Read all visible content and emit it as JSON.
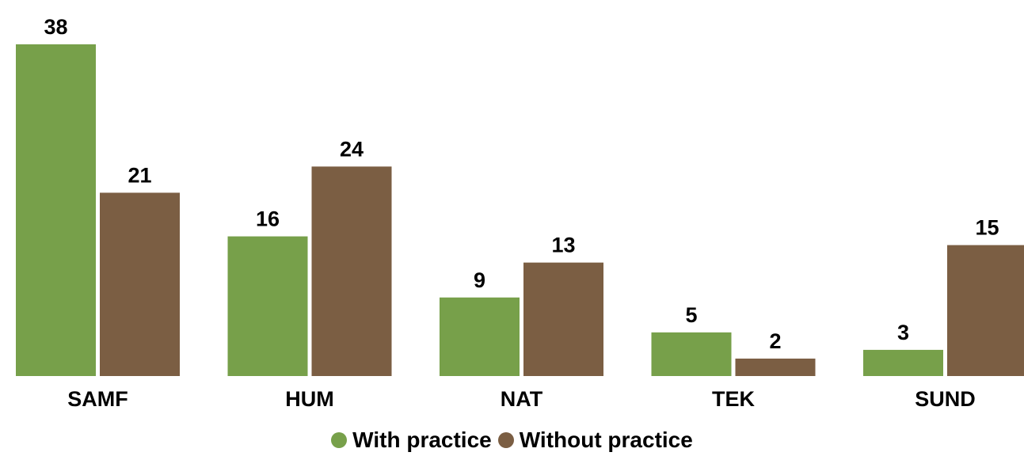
{
  "chart_data": {
    "type": "bar",
    "categories": [
      "SAMF",
      "HUM",
      "NAT",
      "TEK",
      "SUND"
    ],
    "series": [
      {
        "name": "With practice",
        "values": [
          38,
          16,
          9,
          5,
          3
        ],
        "color": "#77a04a"
      },
      {
        "name": "Without practice",
        "values": [
          21,
          24,
          13,
          2,
          15
        ],
        "color": "#7b5e43"
      }
    ],
    "ylim": [
      0,
      38
    ],
    "legend_position": "bottom-center",
    "grid": false
  },
  "legend": {
    "with_practice": "With practice",
    "without_practice": "Without practice"
  },
  "colors": {
    "with_practice": "#77a04a",
    "without_practice": "#7b5e43"
  }
}
